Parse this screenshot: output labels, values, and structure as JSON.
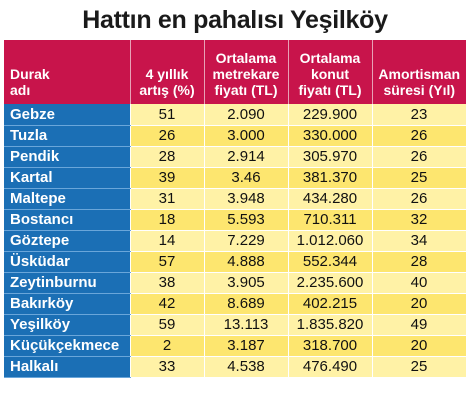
{
  "title": "Hattın en pahalısı Yeşilköy",
  "headers": {
    "station": [
      "Durak",
      "adı"
    ],
    "increase": [
      "4 yıllık",
      "artış (%)"
    ],
    "sqm_price": [
      "Ortalama",
      "metrekare",
      "fiyatı (TL)"
    ],
    "home_price": [
      "Ortalama",
      "konut",
      "fiyatı (TL)"
    ],
    "payback": [
      "Amortisman",
      "süresi (Yıl)"
    ]
  },
  "rows": [
    {
      "station": "Gebze",
      "increase": "51",
      "sqm_price": "2.090",
      "home_price": "229.900",
      "payback": "23"
    },
    {
      "station": "Tuzla",
      "increase": "26",
      "sqm_price": "3.000",
      "home_price": "330.000",
      "payback": "26"
    },
    {
      "station": "Pendik",
      "increase": "28",
      "sqm_price": "2.914",
      "home_price": "305.970",
      "payback": "26"
    },
    {
      "station": "Kartal",
      "increase": "39",
      "sqm_price": "3.46",
      "home_price": "381.370",
      "payback": "25"
    },
    {
      "station": "Maltepe",
      "increase": "31",
      "sqm_price": "3.948",
      "home_price": "434.280",
      "payback": "26"
    },
    {
      "station": "Bostancı",
      "increase": "18",
      "sqm_price": "5.593",
      "home_price": "710.311",
      "payback": "32"
    },
    {
      "station": "Göztepe",
      "increase": "14",
      "sqm_price": "7.229",
      "home_price": "1.012.060",
      "payback": "34"
    },
    {
      "station": "Üsküdar",
      "increase": "57",
      "sqm_price": "4.888",
      "home_price": "552.344",
      "payback": "28"
    },
    {
      "station": "Zeytinburnu",
      "increase": "38",
      "sqm_price": "3.905",
      "home_price": "2.235.600",
      "payback": "40"
    },
    {
      "station": "Bakırköy",
      "increase": "42",
      "sqm_price": "8.689",
      "home_price": "402.215",
      "payback": "20"
    },
    {
      "station": "Yeşilköy",
      "increase": "59",
      "sqm_price": "13.113",
      "home_price": "1.835.820",
      "payback": "49"
    },
    {
      "station": "Küçükçekmece",
      "increase": "2",
      "sqm_price": "3.187",
      "home_price": "318.700",
      "payback": "20"
    },
    {
      "station": "Halkalı",
      "increase": "33",
      "sqm_price": "4.538",
      "home_price": "476.490",
      "payback": "25"
    }
  ],
  "colors": {
    "header_bg": "#c8144b",
    "station_bg": "#1b6fb5",
    "cell_light": "#fff2a6",
    "cell_dark": "#fde66f"
  }
}
